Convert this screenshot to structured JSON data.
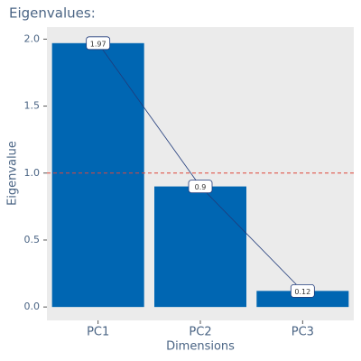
{
  "chart_data": {
    "type": "bar",
    "title": "Eigenvalues:",
    "x_label": "Dimensions",
    "y_label": "Eigenvalue",
    "categories": [
      "PC1",
      "PC2",
      "PC3"
    ],
    "values": [
      1.97,
      0.9,
      0.12
    ],
    "color": "#0066b2",
    "line_color": "#1f3a7a",
    "ylim": [
      -0.1,
      2.09
    ],
    "yticks": [
      {
        "value": 0,
        "label": "0.0"
      },
      0.5,
      {
        "value": 1,
        "label": "1.0"
      },
      1.5,
      {
        "value": 2,
        "label": "2.0"
      }
    ],
    "reference_line": {
      "value": 1,
      "color": "#e0453a"
    },
    "grid": false
  }
}
